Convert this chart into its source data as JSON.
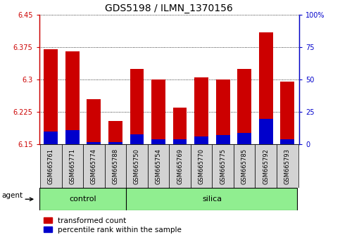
{
  "title": "GDS5198 / ILMN_1370156",
  "samples": [
    "GSM665761",
    "GSM665771",
    "GSM665774",
    "GSM665788",
    "GSM665750",
    "GSM665754",
    "GSM665769",
    "GSM665770",
    "GSM665775",
    "GSM665785",
    "GSM665792",
    "GSM665793"
  ],
  "groups": [
    "control",
    "control",
    "control",
    "control",
    "silica",
    "silica",
    "silica",
    "silica",
    "silica",
    "silica",
    "silica",
    "silica"
  ],
  "transformed_count": [
    6.37,
    6.365,
    6.255,
    6.205,
    6.325,
    6.3,
    6.235,
    6.305,
    6.3,
    6.325,
    6.41,
    6.295
  ],
  "percentile_rank": [
    10,
    11,
    2,
    2,
    8,
    4,
    4,
    6,
    7,
    9,
    20,
    4
  ],
  "y_min": 6.15,
  "y_max": 6.45,
  "y_ticks_left": [
    6.15,
    6.225,
    6.3,
    6.375,
    6.45
  ],
  "y_ticks_right": [
    0,
    25,
    50,
    75,
    100
  ],
  "bar_color_red": "#cc0000",
  "bar_color_blue": "#0000cc",
  "sample_box_color": "#d3d3d3",
  "group_fill_color": "#90ee90",
  "legend_items": [
    "transformed count",
    "percentile rank within the sample"
  ],
  "control_label": "control",
  "silica_label": "silica",
  "control_count": 4,
  "title_fontsize": 10,
  "tick_fontsize": 7,
  "label_fontsize": 7.5,
  "sample_fontsize": 6,
  "group_fontsize": 8
}
